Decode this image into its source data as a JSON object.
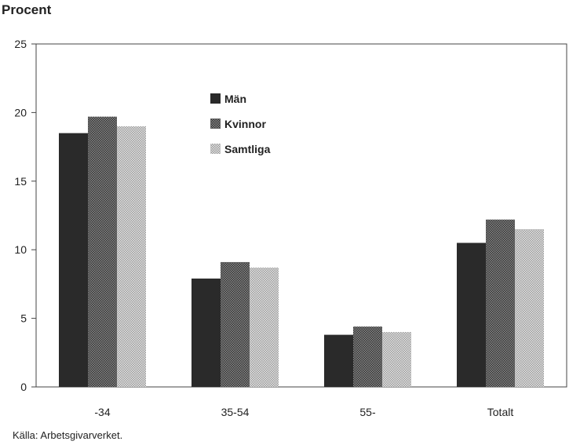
{
  "chart_data": {
    "type": "bar",
    "title": "Procent",
    "categories": [
      "-34",
      "35-54",
      "55-",
      "Totalt"
    ],
    "series": [
      {
        "name": "Män",
        "values": [
          18.5,
          7.9,
          3.8,
          10.5
        ]
      },
      {
        "name": "Kvinnor",
        "values": [
          19.7,
          9.1,
          4.4,
          12.2
        ]
      },
      {
        "name": "Samtliga",
        "values": [
          19.0,
          8.7,
          4.0,
          11.5
        ]
      }
    ],
    "ylim": [
      0,
      25
    ],
    "yticks": [
      "0",
      "5",
      "10",
      "15",
      "20",
      "25"
    ],
    "xlabel": "",
    "ylabel": "",
    "grid": false,
    "legend_position": "upper-center",
    "source": "Källa: Arbetsgivarverket.",
    "colors": {
      "Män": "#222222",
      "Kvinnor": "#555555",
      "Samtliga": "#bdbdbd"
    }
  }
}
